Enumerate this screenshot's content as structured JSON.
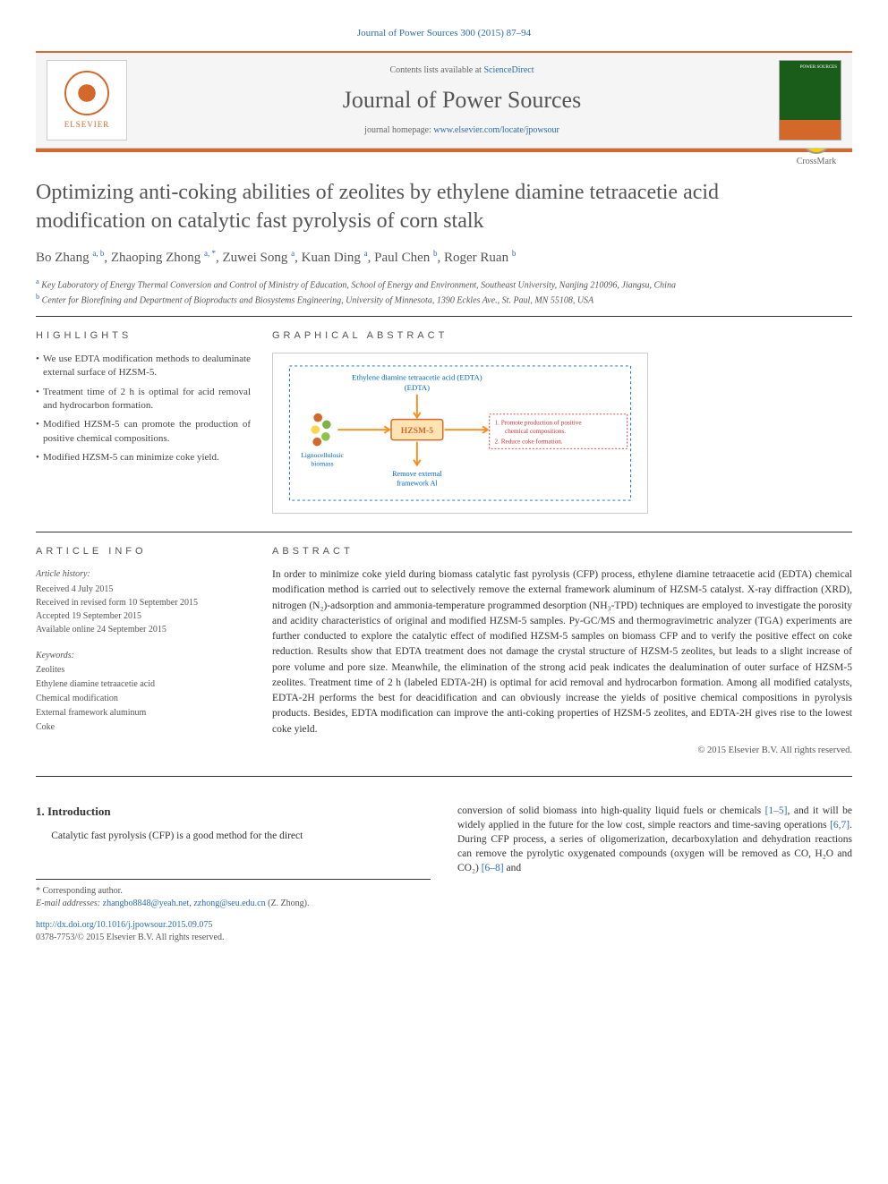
{
  "journal_ref": "Journal of Power Sources 300 (2015) 87–94",
  "header": {
    "contents_text": "Contents lists available at ",
    "sciencedirect": "ScienceDirect",
    "journal_name": "Journal of Power Sources",
    "homepage_label": "journal homepage: ",
    "homepage_url": "www.elsevier.com/locate/jpowsour",
    "elsevier": "ELSEVIER"
  },
  "crossmark": "CrossMark",
  "title": "Optimizing anti-coking abilities of zeolites by ethylene diamine tetraacetie acid modification on catalytic fast pyrolysis of corn stalk",
  "authors_html": "Bo Zhang <sup>a, b</sup>, Zhaoping Zhong <sup>a, *</sup>, Zuwei Song <sup>a</sup>, Kuan Ding <sup>a</sup>, Paul Chen <sup>b</sup>, Roger Ruan <sup>b</sup>",
  "affiliations": {
    "a": "Key Laboratory of Energy Thermal Conversion and Control of Ministry of Education, School of Energy and Environment, Southeast University, Nanjing 210096, Jiangsu, China",
    "b": "Center for Biorefining and Department of Bioproducts and Biosystems Engineering, University of Minnesota, 1390 Eckles Ave., St. Paul, MN 55108, USA"
  },
  "highlights": {
    "label": "HIGHLIGHTS",
    "items": [
      "We use EDTA modification methods to dealuminate external surface of HZSM-5.",
      "Treatment time of 2 h is optimal for acid removal and hydrocarbon formation.",
      "Modified HZSM-5 can promote the production of positive chemical compositions.",
      "Modified HZSM-5 can minimize coke yield."
    ]
  },
  "graphical_abstract": {
    "label": "GRAPHICAL ABSTRACT",
    "edta_label": "Ethylene diamine tetraacetie acid (EDTA)",
    "hzsm_label": "HZSM-5",
    "biomass_label": "Lignocellulosic biomass",
    "remove_label": "Remove external framework Al",
    "result1": "1.  Promote production of positive chemical compositions.",
    "result2": "2.  Reduce coke formation.",
    "colors": {
      "border": "#0066cc",
      "edta_text": "#0066cc",
      "hzsm_fill": "#f5a623",
      "hzsm_border": "#d4682a",
      "arrow": "#ff8c1a",
      "result_text": "#c83232",
      "biomass_text": "#0066cc",
      "remove_text": "#0066cc"
    }
  },
  "article_info": {
    "label": "ARTICLE INFO",
    "history_head": "Article history:",
    "received": "Received 4 July 2015",
    "revised": "Received in revised form 10 September 2015",
    "accepted": "Accepted 19 September 2015",
    "online": "Available online 24 September 2015"
  },
  "keywords": {
    "head": "Keywords:",
    "items": [
      "Zeolites",
      "Ethylene diamine tetraacetie acid",
      "Chemical modification",
      "External framework aluminum",
      "Coke"
    ]
  },
  "abstract": {
    "label": "ABSTRACT",
    "text": "In order to minimize coke yield during biomass catalytic fast pyrolysis (CFP) process, ethylene diamine tetraacetie acid (EDTA) chemical modification method is carried out to selectively remove the external framework aluminum of HZSM-5 catalyst. X-ray diffraction (XRD), nitrogen (N₂)-adsorption and ammonia-temperature programmed desorption (NH₃-TPD) techniques are employed to investigate the porosity and acidity characteristics of original and modified HZSM-5 samples. Py-GC/MS and thermogravimetric analyzer (TGA) experiments are further conducted to explore the catalytic effect of modified HZSM-5 samples on biomass CFP and to verify the positive effect on coke reduction. Results show that EDTA treatment does not damage the crystal structure of HZSM-5 zeolites, but leads to a slight increase of pore volume and pore size. Meanwhile, the elimination of the strong acid peak indicates the dealumination of outer surface of HZSM-5 zeolites. Treatment time of 2 h (labeled EDTA-2H) is optimal for acid removal and hydrocarbon formation. Among all modified catalysts, EDTA-2H performs the best for deacidification and can obviously increase the yields of positive chemical compositions in pyrolysis products. Besides, EDTA modification can improve the anti-coking properties of HZSM-5 zeolites, and EDTA-2H gives rise to the lowest coke yield.",
    "copyright": "© 2015 Elsevier B.V. All rights reserved."
  },
  "introduction": {
    "head": "1. Introduction",
    "left_text": "Catalytic fast pyrolysis (CFP) is a good method for the direct",
    "right_text_html": "conversion of solid biomass into high-quality liquid fuels or chemicals <a class='ref'>[1–5]</a>, and it will be widely applied in the future for the low cost, simple reactors and time-saving operations <a class='ref'>[6,7]</a>. During CFP process, a series of oligomerization, decarboxylation and dehydration reactions can remove the pyrolytic oxygenated compounds (oxygen will be removed as CO, H₂O and CO₂) <a class='ref'>[6–8]</a> and"
  },
  "footnote": {
    "corresponding": "* Corresponding author.",
    "email_label": "E-mail addresses: ",
    "email1": "zhangbo8848@yeah.net",
    "email2": "zzhong@seu.edu.cn",
    "email_name": " (Z. Zhong)."
  },
  "doi": "http://dx.doi.org/10.1016/j.jpowsour.2015.09.075",
  "issn": "0378-7753/© 2015 Elsevier B.V. All rights reserved."
}
